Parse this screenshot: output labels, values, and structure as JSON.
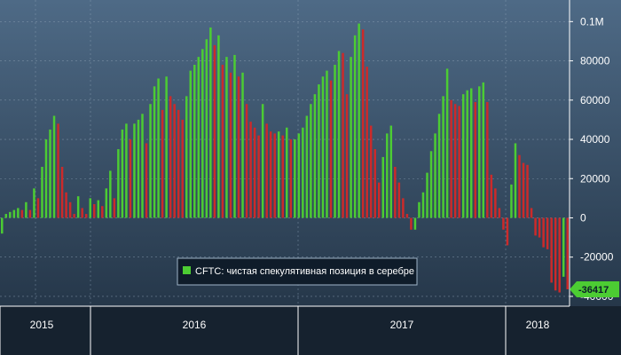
{
  "chart_data": {
    "type": "bar",
    "y_ticks": [
      {
        "value": 100000,
        "label": "0.1M"
      },
      {
        "value": 80000,
        "label": "80000"
      },
      {
        "value": 60000,
        "label": "60000"
      },
      {
        "value": 40000,
        "label": "40000"
      },
      {
        "value": 20000,
        "label": "20000"
      },
      {
        "value": 0,
        "label": "0"
      },
      {
        "value": -20000,
        "label": "-20000"
      },
      {
        "value": -40000,
        "label": "-40000"
      }
    ],
    "ylim": [
      -45000,
      111000
    ],
    "x_labels": [
      "2015",
      "2016",
      "2017",
      "2018"
    ],
    "legend": {
      "label": "CFTC: чистая спекулятивная позиция в серебре",
      "position": "bottom-center"
    },
    "last_value": {
      "value": -36417,
      "label": "-36417"
    },
    "grid": true,
    "colors": {
      "up": "#4ccc33",
      "down": "#cc2a2a",
      "background_top": "#4e6a86",
      "background_bottom": "#1f2f40",
      "callout": "#4ccc33"
    },
    "series": [
      {
        "values": [
          -8000,
          2000,
          3000,
          4000,
          5000,
          4000,
          8000,
          4000,
          15000,
          10000,
          26000,
          40000,
          45000,
          52000,
          48000,
          26000,
          13000,
          8000,
          2000,
          11000,
          5000,
          2000,
          10000,
          7000,
          9000,
          6000,
          15000,
          24000,
          10000,
          35000,
          45000,
          48000,
          40000,
          48000,
          50000,
          53000,
          38000,
          58000,
          67000,
          71000,
          55000,
          72000,
          62000,
          58000,
          55000,
          50000,
          62000,
          75000,
          78000,
          82000,
          86000,
          91000,
          97000,
          88000,
          93000,
          78000,
          82000,
          74000,
          83000,
          72000,
          74000,
          58000,
          49000,
          46000,
          42000,
          58000,
          48000,
          44000,
          43000,
          44000,
          42000,
          46000,
          40000,
          40000,
          43000,
          46000,
          52000,
          58000,
          63000,
          68000,
          72000,
          75000,
          70000,
          78000,
          85000,
          84000,
          63000,
          82000,
          93000,
          99000,
          96000,
          77000,
          47000,
          35000,
          18000,
          31000,
          43000,
          47000,
          26000,
          18000,
          10000,
          2000,
          -6000,
          -6000,
          8000,
          13000,
          23000,
          34000,
          43000,
          53000,
          62000,
          76000,
          60000,
          58000,
          57000,
          63000,
          65000,
          66000,
          59000,
          67000,
          69000,
          59000,
          22000,
          15000,
          5000,
          -6000,
          -14000,
          17000,
          38000,
          32000,
          28000,
          27000,
          5000,
          -9000,
          -10000,
          -15000,
          -16000,
          -33000,
          -37000,
          -38000,
          -30000,
          -36417
        ]
      }
    ]
  }
}
